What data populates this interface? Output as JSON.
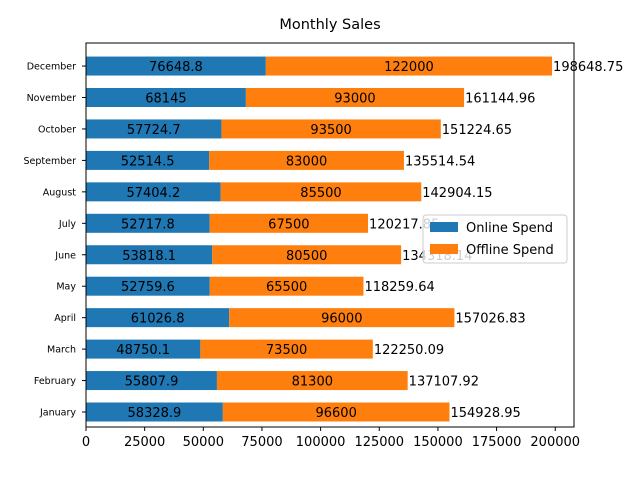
{
  "chart_data": {
    "type": "bar",
    "orientation": "horizontal",
    "stacked": true,
    "title": "Monthly Sales",
    "xlabel": "",
    "ylabel": "",
    "xlim": [
      0,
      208000
    ],
    "x_ticks": [
      0,
      25000,
      50000,
      75000,
      100000,
      125000,
      150000,
      175000,
      200000
    ],
    "categories": [
      "January",
      "February",
      "March",
      "April",
      "May",
      "June",
      "July",
      "August",
      "September",
      "October",
      "November",
      "December"
    ],
    "series": [
      {
        "name": "Online Spend",
        "color": "#1f77b4",
        "values": [
          58328.9,
          55807.9,
          48750.1,
          61026.8,
          52759.6,
          53818.1,
          52717.8,
          57404.2,
          52514.5,
          57724.7,
          68145,
          76648.8
        ],
        "labels": [
          "58328.9",
          "55807.9",
          "48750.1",
          "61026.8",
          "52759.6",
          "53818.1",
          "52717.8",
          "57404.2",
          "52514.5",
          "57724.7",
          "68145",
          "76648.8"
        ]
      },
      {
        "name": "Offline Spend",
        "color": "#ff7f0e",
        "values": [
          96600,
          81300,
          73500,
          96000,
          65500,
          80500,
          67500,
          85500,
          83000,
          93500,
          93000,
          122000
        ],
        "labels": [
          "96600",
          "81300",
          "73500",
          "96000",
          "65500",
          "80500",
          "67500",
          "85500",
          "83000",
          "93500",
          "93000",
          "122000"
        ]
      }
    ],
    "totals": [
      "154928.95",
      "137107.92",
      "122250.09",
      "157026.83",
      "118259.64",
      "134318.14",
      "120217.85",
      "142904.15",
      "135514.54",
      "151224.65",
      "161144.96",
      "198648.75"
    ],
    "legend": {
      "position": "right"
    },
    "grid": false
  }
}
